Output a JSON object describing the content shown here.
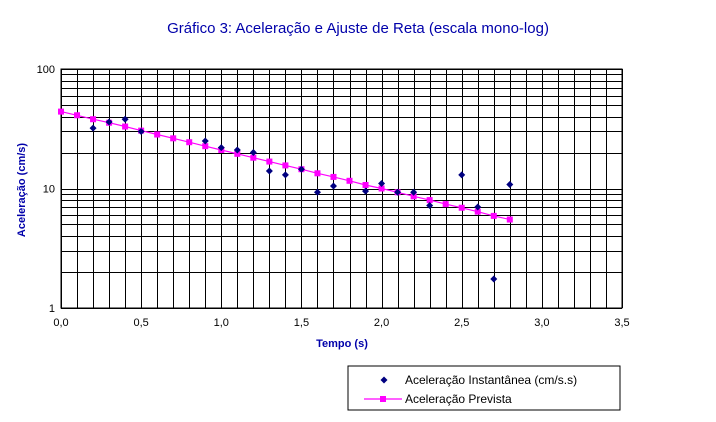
{
  "chart_data": {
    "type": "scatter",
    "title": "Gráfico 3: Aceleração e Ajuste de Reta (escala mono-log)",
    "xlabel": "Tempo (s)",
    "ylabel": "Aceleração (cm/s)",
    "xlim": [
      0,
      3.5
    ],
    "ylim": [
      1,
      100
    ],
    "yscale": "log",
    "grid": true,
    "legend_position": "bottom-right",
    "x_ticks": [
      "0,0",
      "0,5",
      "1,0",
      "1,5",
      "2,0",
      "2,5",
      "3,0",
      "3,5"
    ],
    "y_ticks": [
      "1",
      "10",
      "100"
    ],
    "series": [
      {
        "name": "Aceleração Instantânea (cm/s.s)",
        "type": "scatter",
        "color": "#000080",
        "marker": "diamond",
        "points": [
          [
            0.2,
            32
          ],
          [
            0.3,
            36
          ],
          [
            0.4,
            38
          ],
          [
            0.5,
            30
          ],
          [
            0.9,
            25
          ],
          [
            1.0,
            22
          ],
          [
            1.1,
            21
          ],
          [
            1.2,
            20
          ],
          [
            1.3,
            14
          ],
          [
            1.4,
            13
          ],
          [
            1.5,
            14.5
          ],
          [
            1.6,
            9.3
          ],
          [
            1.7,
            10.5
          ],
          [
            1.9,
            9.5
          ],
          [
            2.0,
            11
          ],
          [
            2.1,
            9.3
          ],
          [
            2.2,
            9.3
          ],
          [
            2.3,
            7.2
          ],
          [
            2.5,
            13
          ],
          [
            2.6,
            7
          ],
          [
            2.7,
            1.75
          ],
          [
            2.8,
            10.8
          ]
        ]
      },
      {
        "name": "Aceleração Prevista",
        "type": "line",
        "color": "#ff00ff",
        "marker": "square",
        "points": [
          [
            0.0,
            44
          ],
          [
            0.1,
            41
          ],
          [
            0.2,
            38
          ],
          [
            0.3,
            35.5
          ],
          [
            0.4,
            33
          ],
          [
            0.5,
            30.5
          ],
          [
            0.6,
            28.3
          ],
          [
            0.7,
            26.3
          ],
          [
            0.8,
            24.4
          ],
          [
            0.9,
            22.6
          ],
          [
            1.0,
            21
          ],
          [
            1.1,
            19.5
          ],
          [
            1.2,
            18.1
          ],
          [
            1.3,
            16.8
          ],
          [
            1.4,
            15.6
          ],
          [
            1.5,
            14.5
          ],
          [
            1.6,
            13.4
          ],
          [
            1.7,
            12.5
          ],
          [
            1.8,
            11.6
          ],
          [
            1.9,
            10.7
          ],
          [
            2.0,
            10
          ],
          [
            2.1,
            9.3
          ],
          [
            2.2,
            8.6
          ],
          [
            2.3,
            8
          ],
          [
            2.4,
            7.4
          ],
          [
            2.5,
            6.9
          ],
          [
            2.6,
            6.4
          ],
          [
            2.7,
            5.9
          ],
          [
            2.8,
            5.5
          ]
        ]
      }
    ]
  }
}
